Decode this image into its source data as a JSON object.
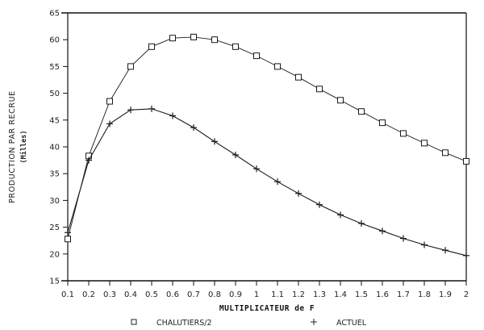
{
  "chart_data": {
    "type": "line",
    "title": "",
    "xlabel": "MULTIPLICATEUR de F",
    "ylabel": "PRODUCTION PAR RECRUE",
    "ylabel_unit": "(Milles)",
    "x": [
      0.1,
      0.2,
      0.3,
      0.4,
      0.5,
      0.6,
      0.7,
      0.8,
      0.9,
      1,
      1.1,
      1.2,
      1.3,
      1.4,
      1.5,
      1.6,
      1.7,
      1.8,
      1.9,
      2
    ],
    "x_tick_labels": [
      "0.1",
      "0.2",
      "0.3",
      "0.4",
      "0.5",
      "0.6",
      "0.7",
      "0.8",
      "0.9",
      "1",
      "1.1",
      "1.2",
      "1.3",
      "1.4",
      "1.5",
      "1.6",
      "1.7",
      "1.8",
      "1.9",
      "2"
    ],
    "ylim": [
      15,
      65
    ],
    "y_ticks": [
      15,
      20,
      25,
      30,
      35,
      40,
      45,
      50,
      55,
      60,
      65
    ],
    "grid": false,
    "legend_position": "bottom",
    "series": [
      {
        "name": "CHALUTIERS/2",
        "marker": "square",
        "values": [
          22.8,
          38.3,
          48.5,
          55.0,
          58.7,
          60.3,
          60.5,
          60.0,
          58.7,
          57.0,
          55.0,
          53.0,
          50.8,
          48.7,
          46.6,
          44.5,
          42.5,
          40.7,
          38.9,
          37.3
        ]
      },
      {
        "name": "ACTUEL",
        "marker": "plus",
        "values": [
          24.0,
          37.5,
          44.3,
          46.9,
          47.1,
          45.8,
          43.6,
          41.0,
          38.5,
          35.9,
          33.5,
          31.3,
          29.2,
          27.3,
          25.7,
          24.3,
          22.9,
          21.7,
          20.7,
          19.7
        ]
      }
    ]
  },
  "legend": {
    "items": [
      {
        "label": "CHALUTIERS/2",
        "symbol": "□"
      },
      {
        "label": "ACTUEL",
        "symbol": "+"
      }
    ]
  },
  "style": {
    "line_color": "#1a1a1a",
    "axis_color": "#111111",
    "background": "#ffffff"
  }
}
